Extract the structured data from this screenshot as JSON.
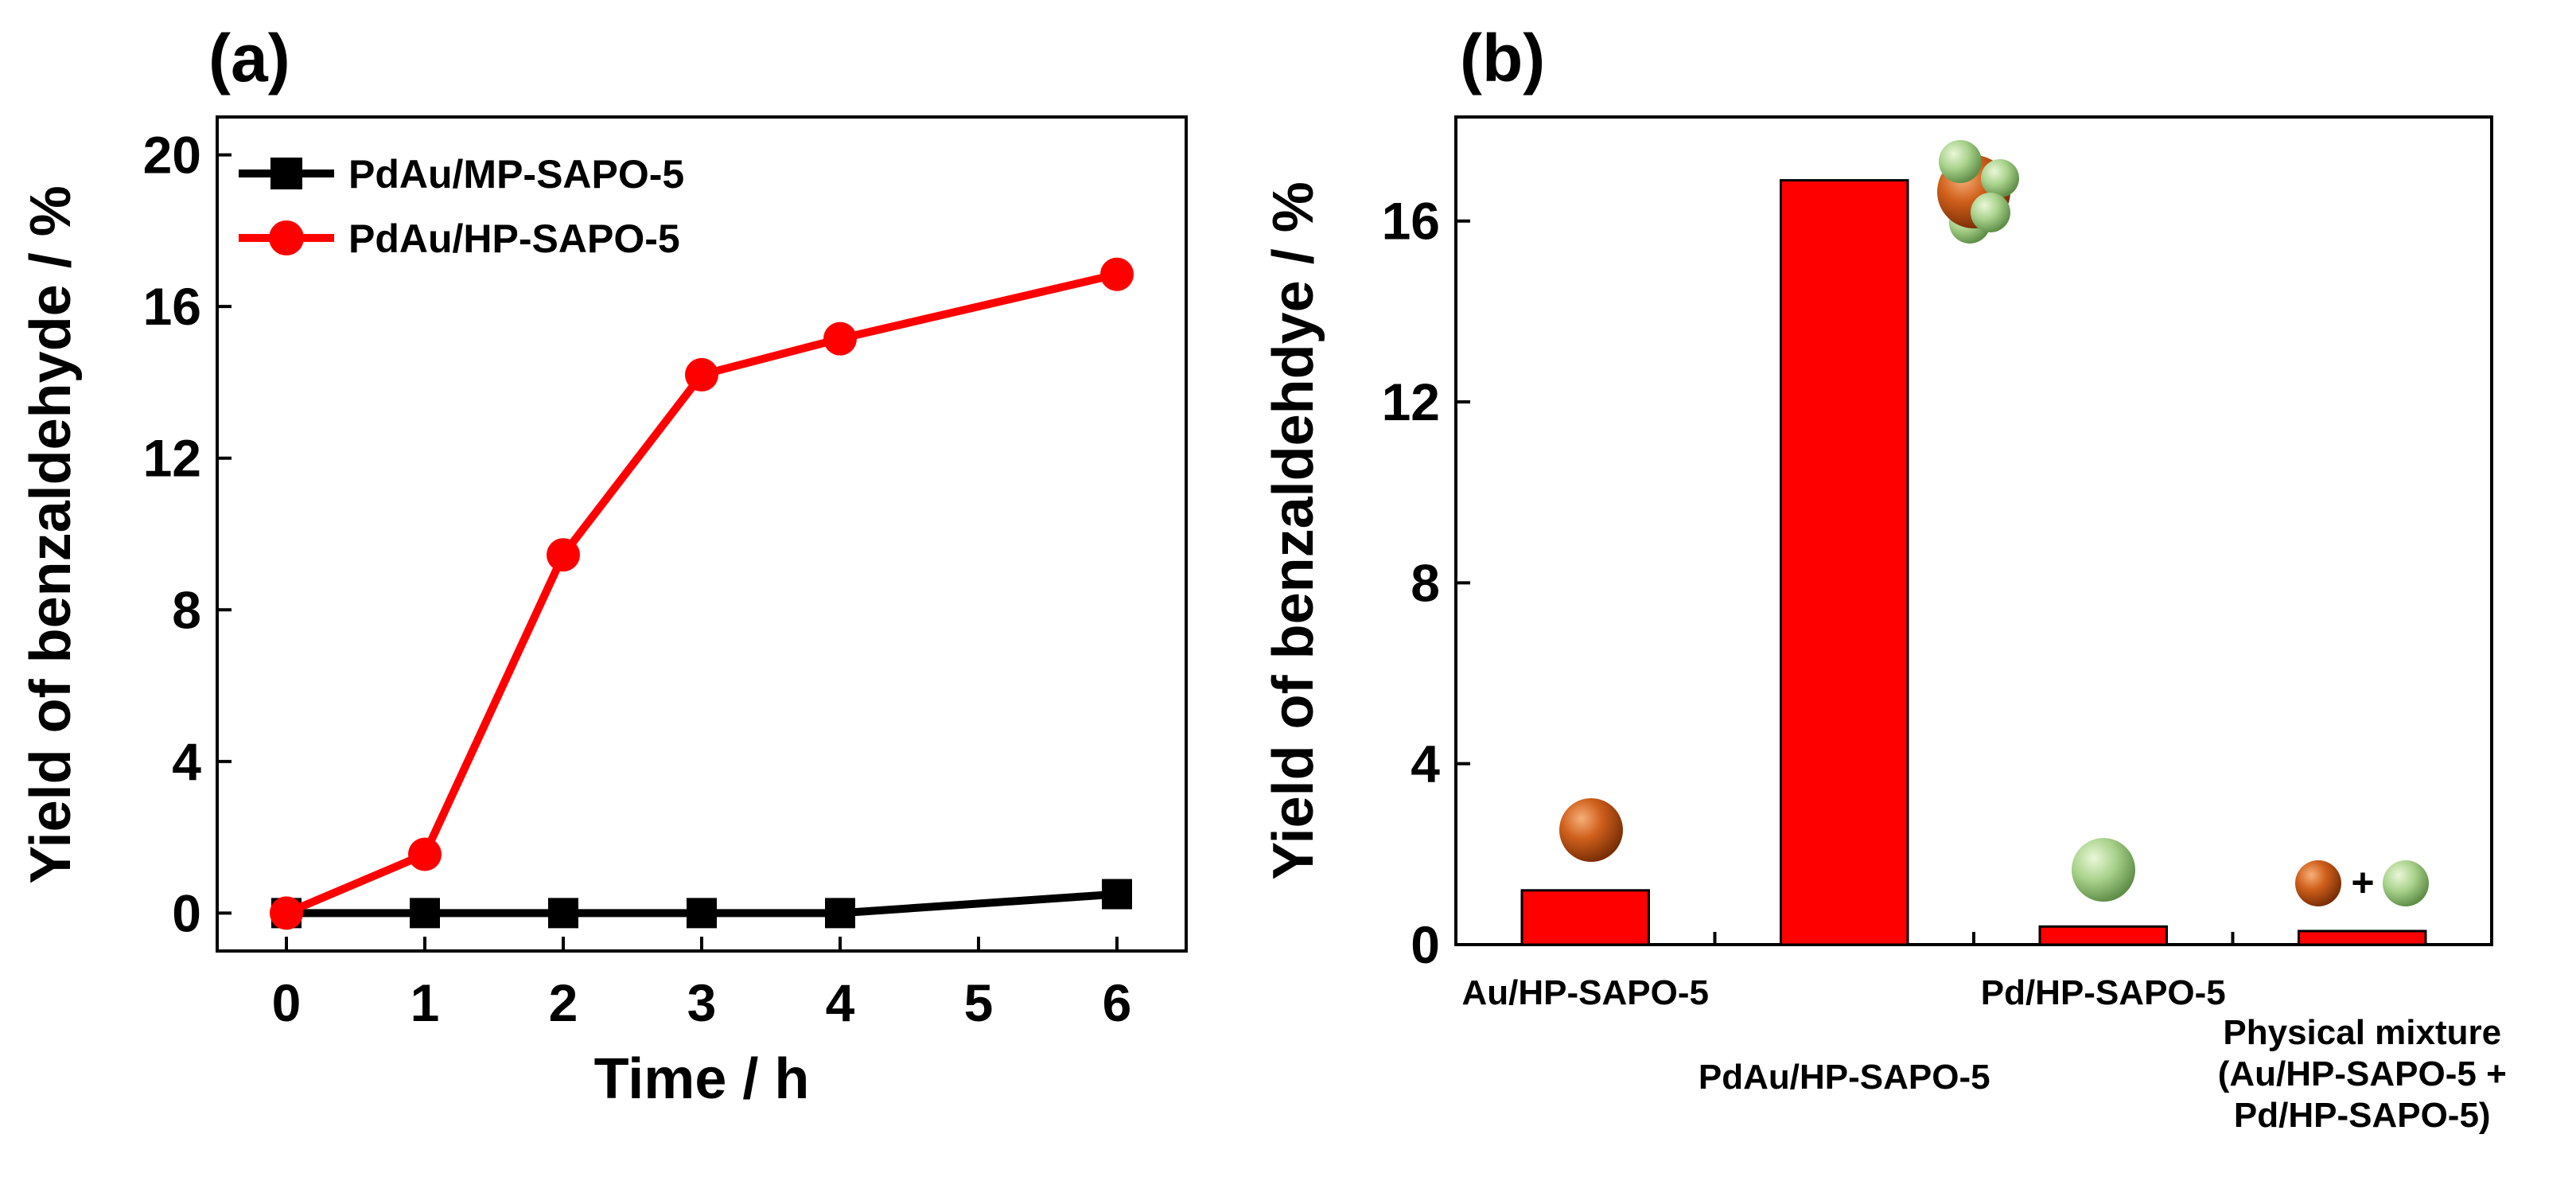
{
  "chart_data": [
    {
      "type": "line",
      "panel_label": "(a)",
      "xlabel": "Time / h",
      "ylabel": "Yield of benzaldehyde / %",
      "xlim": [
        -0.5,
        6.5
      ],
      "ylim": [
        -1,
        21
      ],
      "xticks": [
        "0",
        "1",
        "2",
        "3",
        "4",
        "5",
        "6"
      ],
      "yticks": [
        "0",
        "4",
        "8",
        "12",
        "16",
        "20"
      ],
      "legend_position": "top-left",
      "series": [
        {
          "name": "PdAu/MP-SAPO-5",
          "color": "#000000",
          "marker": "square",
          "x": [
            0,
            1,
            2,
            3,
            4,
            6
          ],
          "y": [
            0,
            0,
            0,
            0,
            0,
            0.5
          ]
        },
        {
          "name": "PdAu/HP-SAPO-5",
          "color": "#ff0000",
          "marker": "circle",
          "x": [
            0,
            1,
            2,
            3,
            4,
            6
          ],
          "y": [
            0,
            1.55,
            9.45,
            14.2,
            15.15,
            16.85
          ]
        }
      ]
    },
    {
      "type": "bar",
      "panel_label": "(b)",
      "xlabel": "",
      "ylabel": "Yield of benzaldehdye / %",
      "ylim": [
        0,
        18.3
      ],
      "yticks": [
        "0",
        "4",
        "8",
        "12",
        "16"
      ],
      "bar_color": "#ff0000",
      "categories": [
        {
          "lines": [
            "Au/HP-SAPO-5"
          ]
        },
        {
          "lines": [
            "PdAu/HP-SAPO-5"
          ]
        },
        {
          "lines": [
            "Pd/HP-SAPO-5"
          ]
        },
        {
          "lines": [
            "Physical mixture",
            "(Au/HP-SAPO-5 +",
            "Pd/HP-SAPO-5)"
          ]
        }
      ],
      "values": [
        1.2,
        16.9,
        0.4,
        0.3
      ],
      "particle_icons": [
        "au-particle",
        "pdau-cluster",
        "pd-particle",
        "au-plus-pd"
      ],
      "plus_sign": "+"
    }
  ]
}
